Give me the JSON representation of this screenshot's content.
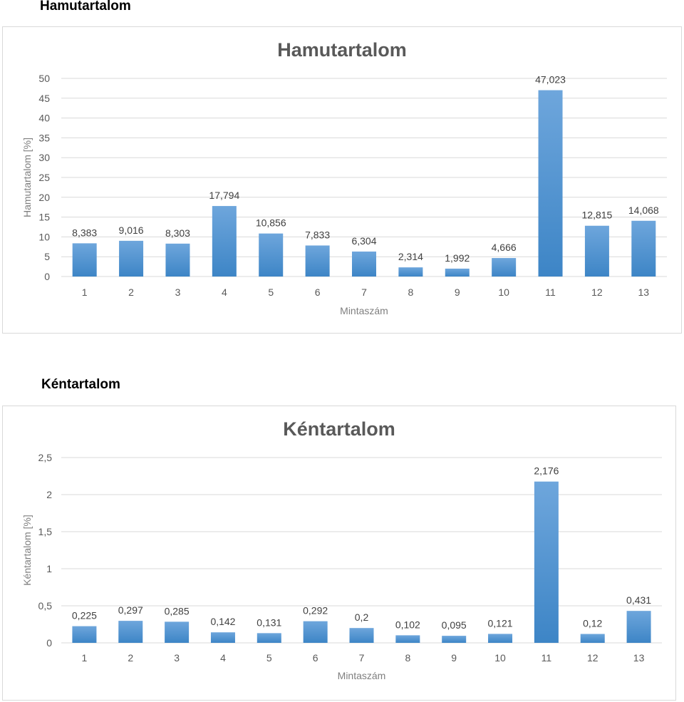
{
  "sections": [
    {
      "heading": "Hamutartalom"
    },
    {
      "heading": "Kéntartalom"
    }
  ],
  "chart_data": [
    {
      "type": "bar",
      "title": "Hamutartalom",
      "xlabel": "Mintaszám",
      "ylabel": "Hamutartalom [%]",
      "categories": [
        "1",
        "2",
        "3",
        "4",
        "5",
        "6",
        "7",
        "8",
        "9",
        "10",
        "11",
        "12",
        "13"
      ],
      "values": [
        8.383,
        9.016,
        8.303,
        17.794,
        10.856,
        7.833,
        6.304,
        2.314,
        1.992,
        4.666,
        47.023,
        12.815,
        14.068
      ],
      "value_labels": [
        "8,383",
        "9,016",
        "8,303",
        "17,794",
        "10,856",
        "7,833",
        "6,304",
        "2,314",
        "1,992",
        "4,666",
        "47,023",
        "12,815",
        "14,068"
      ],
      "ylim": [
        0,
        50
      ],
      "yticks": [
        0,
        5,
        10,
        15,
        20,
        25,
        30,
        35,
        40,
        45,
        50
      ],
      "ytick_labels": [
        "0",
        "5",
        "10",
        "15",
        "20",
        "25",
        "30",
        "35",
        "40",
        "45",
        "50"
      ],
      "grid": true,
      "bar_color": "#5b9bd5"
    },
    {
      "type": "bar",
      "title": "Kéntartalom",
      "xlabel": "Mintaszám",
      "ylabel": "Kéntartalom [%]",
      "categories": [
        "1",
        "2",
        "3",
        "4",
        "5",
        "6",
        "7",
        "8",
        "9",
        "10",
        "11",
        "12",
        "13"
      ],
      "values": [
        0.225,
        0.297,
        0.285,
        0.142,
        0.131,
        0.292,
        0.2,
        0.102,
        0.095,
        0.121,
        2.176,
        0.12,
        0.431
      ],
      "value_labels": [
        "0,225",
        "0,297",
        "0,285",
        "0,142",
        "0,131",
        "0,292",
        "0,2",
        "0,102",
        "0,095",
        "0,121",
        "2,176",
        "0,12",
        "0,431"
      ],
      "ylim": [
        0,
        2.5
      ],
      "yticks": [
        0,
        0.5,
        1,
        1.5,
        2,
        2.5
      ],
      "ytick_labels": [
        "0",
        "0,5",
        "1",
        "1,5",
        "2",
        "2,5"
      ],
      "grid": true,
      "bar_color": "#5b9bd5"
    }
  ]
}
